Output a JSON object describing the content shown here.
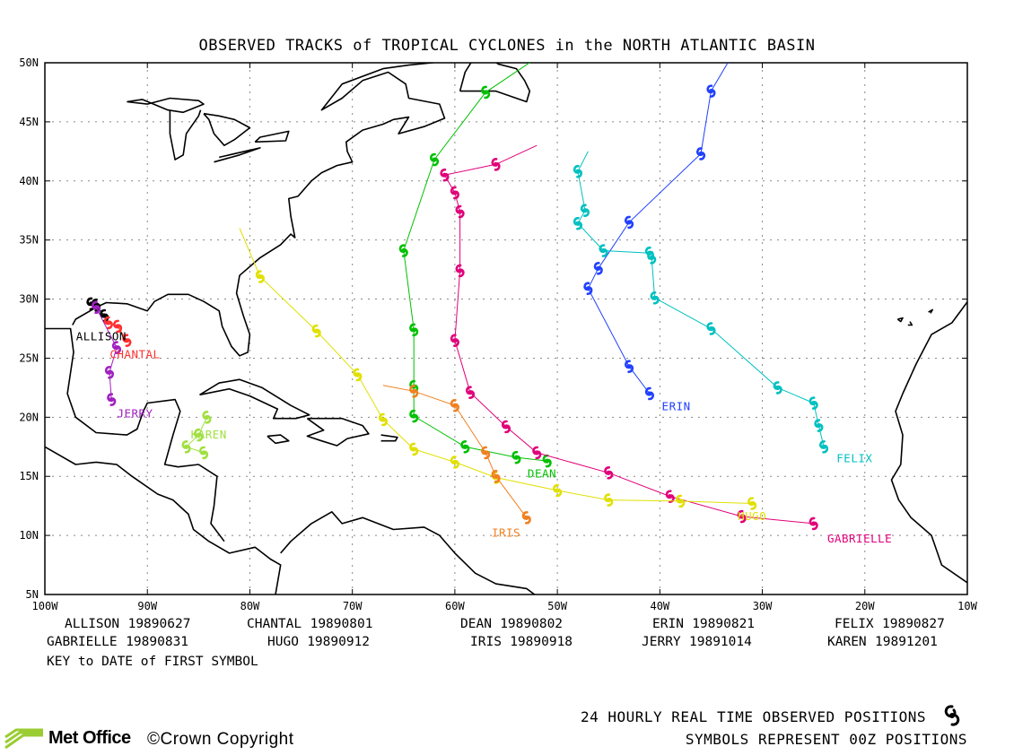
{
  "title": "OBSERVED TRACKS of TROPICAL CYCLONES in the NORTH ATLANTIC BASIN",
  "axes": {
    "lat_labels": [
      "50N",
      "45N",
      "40N",
      "35N",
      "30N",
      "25N",
      "20N",
      "15N",
      "10N",
      "5N"
    ],
    "lon_labels": [
      "100W",
      "90W",
      "80W",
      "70W",
      "60W",
      "50W",
      "40W",
      "30W",
      "20W",
      "10W"
    ]
  },
  "storms": [
    {
      "name": "ALLISON",
      "date": "19890627",
      "color": "#000000",
      "label": "ALLISON",
      "track": [
        [
          -95.5,
          29.6
        ],
        [
          -95,
          29.5
        ],
        [
          -94.2,
          28.6
        ]
      ]
    },
    {
      "name": "CHANTAL",
      "date": "19890801",
      "color": "#ff3030",
      "label": "CHANTAL",
      "track": [
        [
          -93.8,
          28.0
        ],
        [
          -92.9,
          27.7
        ],
        [
          -92.0,
          26.5
        ]
      ]
    },
    {
      "name": "DEAN",
      "date": "19890802",
      "color": "#00c000",
      "label": "DEAN",
      "track": [
        [
          -51,
          16.3
        ],
        [
          -54,
          16.6
        ],
        [
          -59,
          17.5
        ],
        [
          -64,
          20.1
        ],
        [
          -64,
          22.6
        ],
        [
          -64,
          27.4
        ],
        [
          -65,
          34.1
        ],
        [
          -62,
          41.8
        ],
        [
          -57,
          47.5
        ],
        [
          -51,
          51
        ]
      ]
    },
    {
      "name": "ERIN",
      "date": "19890821",
      "color": "#2040ff",
      "label": "ERIN",
      "track": [
        [
          -41,
          22
        ],
        [
          -43,
          24.3
        ],
        [
          -47,
          30.9
        ],
        [
          -46,
          32.6
        ],
        [
          -43,
          36.5
        ],
        [
          -36,
          42.3
        ],
        [
          -35,
          47.6
        ],
        [
          -32,
          52
        ]
      ]
    },
    {
      "name": "FELIX",
      "date": "19890827",
      "color": "#00c0c0",
      "label": "FELIX",
      "track": [
        [
          -24,
          17.5
        ],
        [
          -24.5,
          19.3
        ],
        [
          -25,
          21.2
        ],
        [
          -28.5,
          22.5
        ],
        [
          -35,
          27.5
        ],
        [
          -40.5,
          30.1
        ],
        [
          -40.8,
          33.5
        ],
        [
          -41,
          33.9
        ],
        [
          -45.5,
          34.1
        ],
        [
          -48,
          36.4
        ],
        [
          -47.3,
          37.5
        ],
        [
          -48,
          40.8
        ],
        [
          -47,
          42.5
        ]
      ]
    },
    {
      "name": "GABRIELLE",
      "date": "19890831",
      "color": "#e0007a",
      "label": "GABRIELLE",
      "track": [
        [
          -25,
          11
        ],
        [
          -32,
          11.6
        ],
        [
          -39,
          13.3
        ],
        [
          -45,
          15.3
        ],
        [
          -52,
          17
        ],
        [
          -55,
          19.2
        ],
        [
          -58.5,
          22.1
        ],
        [
          -60,
          26.5
        ],
        [
          -59.5,
          32.4
        ],
        [
          -59.5,
          37.4
        ],
        [
          -60,
          39
        ],
        [
          -61,
          40.5
        ],
        [
          -56,
          41.4
        ],
        [
          -52,
          43
        ]
      ]
    },
    {
      "name": "HUGO",
      "date": "19890912",
      "color": "#e0e000",
      "label": "HUGO",
      "track": [
        [
          -31,
          12.7
        ],
        [
          -38,
          12.9
        ],
        [
          -45,
          13
        ],
        [
          -50,
          13.8
        ],
        [
          -56,
          14.9
        ],
        [
          -60,
          16.2
        ],
        [
          -64,
          17.3
        ],
        [
          -67,
          19.8
        ],
        [
          -69.5,
          23.6
        ],
        [
          -73.5,
          27.3
        ],
        [
          -79,
          31.9
        ],
        [
          -81,
          36
        ]
      ]
    },
    {
      "name": "IRIS",
      "date": "19890918",
      "color": "#f08020",
      "label": "IRIS",
      "track": [
        [
          -53,
          11.5
        ],
        [
          -56,
          15
        ],
        [
          -57,
          17
        ],
        [
          -60,
          21
        ],
        [
          -64,
          22.2
        ],
        [
          -67,
          22.7
        ]
      ]
    },
    {
      "name": "JERRY",
      "date": "19891014",
      "color": "#a020c0",
      "label": "JERRY",
      "track": [
        [
          -93.5,
          21.5
        ],
        [
          -93.7,
          23.8
        ],
        [
          -93,
          25.9
        ],
        [
          -95,
          29.3
        ]
      ]
    },
    {
      "name": "KAREN",
      "date": "19891201",
      "color": "#a0e040",
      "label": "KAREN",
      "track": [
        [
          -84.2,
          20
        ],
        [
          -85,
          18.5
        ],
        [
          -86.2,
          17.5
        ],
        [
          -84.5,
          17
        ]
      ]
    }
  ],
  "key_rows": [
    [
      "ALLISON",
      "19890627",
      "CHANTAL",
      "19890801",
      "DEAN",
      "19890802",
      "ERIN",
      "19890821",
      "FELIX",
      "19890827"
    ],
    [
      "GABRIELLE",
      "19890831",
      "HUGO",
      "19890912",
      "IRIS",
      "19890918",
      "JERRY",
      "19891014",
      "KAREN",
      "19891201"
    ]
  ],
  "key_note": "KEY to DATE of FIRST SYMBOL",
  "footer": {
    "line1": "24 HOURLY REAL TIME OBSERVED POSITIONS",
    "line2": "SYMBOLS REPRESENT 00Z POSITIONS",
    "brand": "Met Office",
    "copyright": "©Crown Copyright"
  }
}
